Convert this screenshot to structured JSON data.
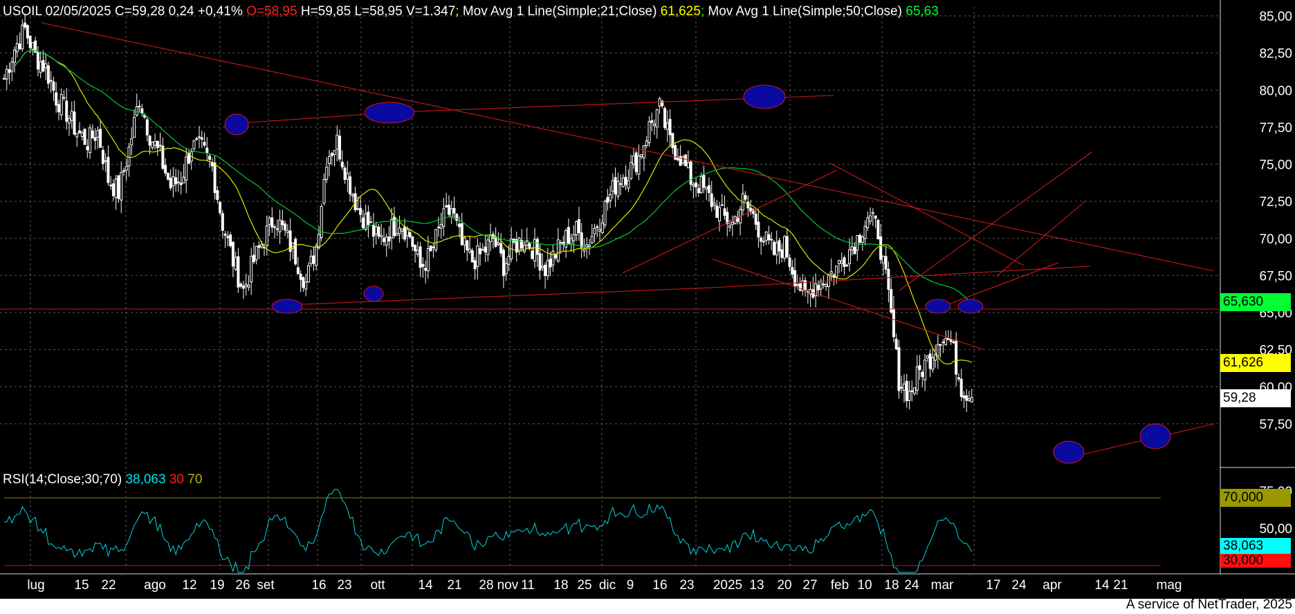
{
  "header": {
    "symbol_info": "USOIL 02/05/2025 C=59,28 0,24 +0,41%",
    "open": "O=58,95",
    "rest": "H=59,85 L=58,95 V=1.347",
    "sep": ";",
    "ma21_label": "Mov Avg 1 Line(Simple;21;Close)",
    "ma21_value": "61,625",
    "ma50_label": "Mov Avg 1 Line(Simple;50;Close)",
    "ma50_value": "65,63"
  },
  "rsi_header": {
    "label": "RSI(14;Close;30;70)",
    "value": "38,063",
    "low": "30",
    "high": "70"
  },
  "tags": {
    "ma50": "65,630",
    "ma21": "61,626",
    "close": "59,28",
    "rsi70": "70,000",
    "rsi_val": "38,063",
    "rsi30": "30,000"
  },
  "colors": {
    "ma21": "#e6e600",
    "ma50": "#00cc33",
    "rsi": "#00d8e0",
    "trendline": "#d01818",
    "ellipse": "#0a0aa0",
    "grid": "#5a5a5a"
  },
  "footer": "A service of NetTrader, 2025",
  "chart_data": {
    "type": "candlestick",
    "symbol": "USOIL",
    "price_axis": {
      "ticks": [
        "85,00",
        "82,50",
        "80,00",
        "77,50",
        "75,00",
        "72,50",
        "70,00",
        "67,50",
        "65,00",
        "62,50",
        "60,00",
        "57,50"
      ],
      "range": [
        54.5,
        86.0
      ]
    },
    "rsi_axis": {
      "ticks": [
        "75,00",
        "50,00"
      ],
      "levels": [
        30,
        70
      ]
    },
    "x_ticks": [
      "lug",
      "15",
      "22",
      "ago",
      "12",
      "19",
      "26",
      "set",
      "16",
      "23",
      "ott",
      "14",
      "21",
      "28",
      "nov",
      "11",
      "18",
      "25",
      "dic",
      "9",
      "16",
      "23",
      "2025",
      "13",
      "20",
      "27",
      "feb",
      "10",
      "18",
      "24",
      "mar",
      "17",
      "24",
      "apr",
      "14",
      "21",
      "mag"
    ],
    "last": {
      "date": "02/05/2025",
      "close": 59.28,
      "open": 58.95,
      "high": 59.85,
      "low": 58.95
    },
    "ma21_last": 61.625,
    "ma50_last": 65.63,
    "rsi_last": 38.063,
    "horizontal_support": 65.3,
    "close_path": [
      [
        0,
        80.8
      ],
      [
        4,
        82.8
      ],
      [
        8,
        84.1
      ],
      [
        12,
        82.3
      ],
      [
        16,
        81.5
      ],
      [
        20,
        79.5
      ],
      [
        24,
        78.5
      ],
      [
        28,
        77.2
      ],
      [
        32,
        76.5
      ],
      [
        36,
        77.2
      ],
      [
        40,
        74.0
      ],
      [
        44,
        73.1
      ],
      [
        48,
        76.0
      ],
      [
        52,
        79.5
      ],
      [
        56,
        77.0
      ],
      [
        60,
        75.5
      ],
      [
        64,
        73.5
      ],
      [
        68,
        74.0
      ],
      [
        72,
        76.2
      ],
      [
        76,
        76.0
      ],
      [
        80,
        74.8
      ],
      [
        84,
        71.0
      ],
      [
        88,
        68.5
      ],
      [
        92,
        66.5
      ],
      [
        96,
        68.5
      ],
      [
        100,
        70.0
      ],
      [
        104,
        71.5
      ],
      [
        108,
        70.3
      ],
      [
        112,
        68.8
      ],
      [
        116,
        67.0
      ],
      [
        120,
        69.5
      ],
      [
        124,
        75.5
      ],
      [
        128,
        76.5
      ],
      [
        132,
        74.2
      ],
      [
        136,
        72.0
      ],
      [
        140,
        71.0
      ],
      [
        144,
        69.8
      ],
      [
        148,
        70.5
      ],
      [
        152,
        71.2
      ],
      [
        156,
        70.2
      ],
      [
        160,
        68.0
      ],
      [
        164,
        68.9
      ],
      [
        168,
        71.0
      ],
      [
        172,
        72.0
      ],
      [
        176,
        69.5
      ],
      [
        180,
        68.5
      ],
      [
        184,
        69.0
      ],
      [
        188,
        70.0
      ],
      [
        192,
        68.2
      ],
      [
        196,
        69.5
      ],
      [
        200,
        70.0
      ],
      [
        204,
        69.2
      ],
      [
        208,
        68.0
      ],
      [
        212,
        69.0
      ],
      [
        216,
        70.0
      ],
      [
        220,
        70.5
      ],
      [
        224,
        69.6
      ],
      [
        228,
        71.0
      ],
      [
        232,
        72.5
      ],
      [
        236,
        74.0
      ],
      [
        240,
        74.5
      ],
      [
        244,
        75.5
      ],
      [
        248,
        77.5
      ],
      [
        252,
        78.8
      ],
      [
        256,
        76.5
      ],
      [
        260,
        75.5
      ],
      [
        264,
        74.0
      ],
      [
        268,
        73.5
      ],
      [
        272,
        72.5
      ],
      [
        276,
        71.5
      ],
      [
        280,
        71.0
      ],
      [
        284,
        72.5
      ],
      [
        288,
        71.5
      ],
      [
        292,
        70.0
      ],
      [
        296,
        69.0
      ],
      [
        300,
        69.5
      ],
      [
        304,
        67.5
      ],
      [
        308,
        66.0
      ],
      [
        312,
        67.0
      ],
      [
        316,
        67.3
      ],
      [
        320,
        68.0
      ],
      [
        324,
        69.0
      ],
      [
        328,
        70.0
      ],
      [
        332,
        71.5
      ],
      [
        336,
        70.5
      ],
      [
        340,
        66.0
      ],
      [
        344,
        60.5
      ],
      [
        348,
        59.5
      ],
      [
        352,
        61.0
      ],
      [
        356,
        62.0
      ],
      [
        360,
        63.5
      ],
      [
        364,
        63.0
      ],
      [
        368,
        60.0
      ],
      [
        372,
        59.28
      ]
    ]
  }
}
